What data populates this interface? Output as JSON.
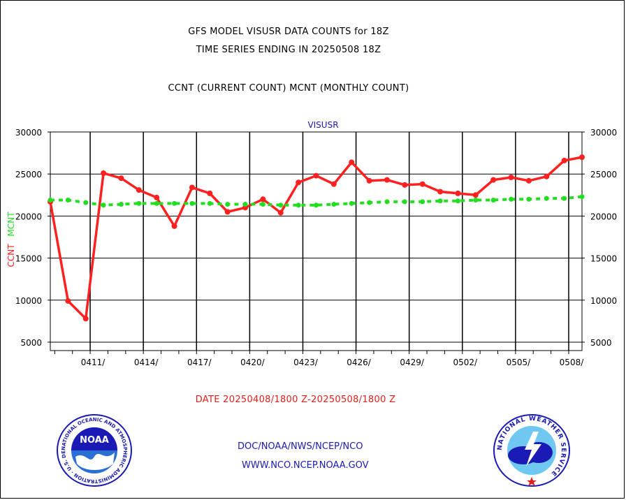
{
  "titles": {
    "line1": "GFS MODEL VISUSR DATA COUNTS for 18Z",
    "line2": "TIME SERIES ENDING IN 20250508 18Z",
    "line3": "CCNT (CURRENT COUNT) MCNT (MONTHLY COUNT)"
  },
  "chart_data": {
    "type": "line",
    "title": "VISUSR",
    "ylabel_ccnt": "CCNT",
    "ylabel_mcnt": "MCNT",
    "ylim": [
      4000,
      30000
    ],
    "yticks": [
      5000,
      10000,
      15000,
      20000,
      25000,
      30000
    ],
    "ytick_labels": [
      "5000",
      "10000",
      "15000",
      "20000",
      "25000",
      "30000"
    ],
    "xtick_labels": [
      "0411/",
      "0414/",
      "0417/",
      "0420/",
      "0423/",
      "0426/",
      "0429/",
      "0502/",
      "0505/",
      "0508/"
    ],
    "x_start": "20250408/18",
    "x_end": "20250508/18",
    "grid": true,
    "series": [
      {
        "name": "CCNT",
        "color": "#ff2020",
        "values": [
          21700,
          9900,
          7800,
          25100,
          24500,
          23100,
          22200,
          18800,
          23400,
          22700,
          20500,
          21000,
          22000,
          20400,
          24000,
          24800,
          23800,
          26400,
          24200,
          24300,
          23700,
          23800,
          22900,
          22700,
          22500,
          24300,
          24600,
          24200,
          24700,
          26600,
          27000
        ]
      },
      {
        "name": "MCNT",
        "color": "#22dd22",
        "values": [
          21900,
          21900,
          21600,
          21300,
          21400,
          21500,
          21500,
          21500,
          21500,
          21500,
          21400,
          21400,
          21400,
          21300,
          21300,
          21300,
          21400,
          21500,
          21600,
          21700,
          21700,
          21700,
          21800,
          21800,
          21900,
          21900,
          22000,
          22000,
          22100,
          22100,
          22300
        ]
      }
    ]
  },
  "footer": {
    "date_range": "DATE 20250408/1800 Z-20250508/1800 Z",
    "line1": "DOC/NOAA/NWS/NCEP/NCO",
    "line2": "WWW.NCO.NCEP.NOAA.GOV"
  },
  "logos": {
    "noaa_ring_text": "NATIONAL OCEANIC AND ATMOSPHERIC ADMINISTRATION · U.S. DEPARTMENT OF COMMERCE",
    "noaa_center": "NOAA",
    "nws_ring_text": "NATIONAL WEATHER SERVICE"
  },
  "colors": {
    "ccnt": "#ff2020",
    "mcnt": "#22dd22",
    "title_blue": "#1a1ab4",
    "footer_red": "#e0201c"
  }
}
